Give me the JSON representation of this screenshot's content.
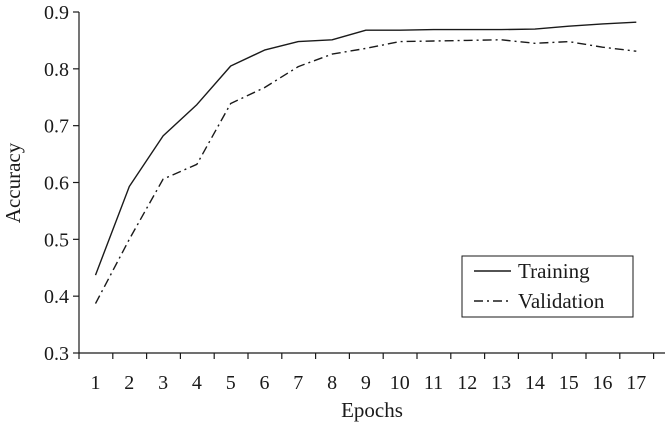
{
  "chart_data": {
    "type": "line",
    "title": "",
    "xlabel": "Epochs",
    "ylabel": "Accuracy",
    "x": [
      1,
      2,
      3,
      4,
      5,
      6,
      7,
      8,
      9,
      10,
      11,
      12,
      13,
      14,
      15,
      16,
      17
    ],
    "xticks": [
      "1",
      "2",
      "3",
      "4",
      "5",
      "6",
      "7",
      "8",
      "9",
      "10",
      "11",
      "12",
      "13",
      "14",
      "15",
      "16",
      "17"
    ],
    "yticks": [
      "0.3",
      "0.4",
      "0.5",
      "0.6",
      "0.7",
      "0.8",
      "0.9"
    ],
    "ylim": [
      0.3,
      0.9
    ],
    "grid": false,
    "legend_position": "bottom-right",
    "series": [
      {
        "name": "Training",
        "line_style": "solid",
        "color": "#1a1a1a",
        "values": [
          0.437,
          0.593,
          0.682,
          0.737,
          0.805,
          0.833,
          0.848,
          0.851,
          0.868,
          0.868,
          0.869,
          0.869,
          0.869,
          0.87,
          0.875,
          0.879,
          0.882
        ]
      },
      {
        "name": "Validation",
        "line_style": "dash-dot",
        "color": "#1a1a1a",
        "values": [
          0.387,
          0.5,
          0.606,
          0.632,
          0.739,
          0.767,
          0.804,
          0.826,
          0.836,
          0.848,
          0.849,
          0.85,
          0.851,
          0.845,
          0.848,
          0.838,
          0.831
        ]
      }
    ]
  }
}
